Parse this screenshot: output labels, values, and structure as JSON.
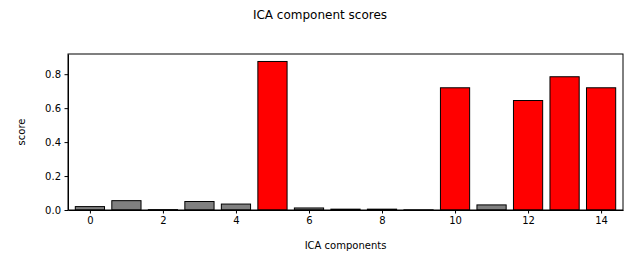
{
  "chart_data": {
    "type": "bar",
    "title": "ICA component scores",
    "x_label": "ICA components",
    "y_label": "score",
    "x": [
      0,
      1,
      2,
      3,
      4,
      5,
      6,
      7,
      8,
      9,
      10,
      11,
      12,
      13,
      14
    ],
    "values": [
      0.02,
      0.055,
      0.002,
      0.05,
      0.035,
      0.875,
      0.012,
      0.005,
      0.005,
      0.001,
      0.72,
      0.03,
      0.645,
      0.785,
      0.72
    ],
    "colors": [
      "#808080",
      "#808080",
      "#808080",
      "#808080",
      "#808080",
      "#ff0000",
      "#808080",
      "#808080",
      "#808080",
      "#808080",
      "#ff0000",
      "#808080",
      "#ff0000",
      "#ff0000",
      "#ff0000"
    ],
    "xlim": [
      -0.6,
      14.6
    ],
    "ylim": [
      0,
      0.919
    ],
    "xticks": [
      0,
      2,
      4,
      6,
      8,
      10,
      12,
      14
    ],
    "yticks": [
      {
        "value": 0,
        "label": "0.0"
      },
      0.2,
      0.4,
      0.6,
      0.8
    ]
  }
}
